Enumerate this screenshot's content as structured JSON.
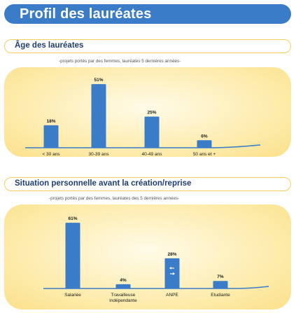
{
  "page": {
    "title": "Profil des lauréates"
  },
  "charts": {
    "age": {
      "section_title": "Âge des lauréates",
      "subtitle": "-projets portés par des femmes, lauréates 5 dernières années-"
    },
    "situation": {
      "section_title": "Situation personnelle avant la création/reprise",
      "subtitle": "-projets portés par des femmes, lauréates des 5 dernières années-"
    }
  },
  "colors": {
    "accent": "#3b7cc8",
    "panel": "#fdeaa6",
    "border": "#f5cf5e"
  },
  "chart_data": [
    {
      "type": "bar",
      "title": "Âge des lauréates",
      "categories": [
        "< 30 ans",
        "30-39 ans",
        "40-49 ans",
        "50 ans et +"
      ],
      "values": [
        18,
        51,
        25,
        6
      ],
      "value_labels": [
        "18%",
        "51%",
        "25%",
        "6%"
      ],
      "ylim": [
        0,
        55
      ],
      "grid": false
    },
    {
      "type": "bar",
      "title": "Situation personnelle avant la création/reprise",
      "categories": [
        "Salariée",
        "Travailleuse\nindépendante",
        "ANPE",
        "Etudiante"
      ],
      "values": [
        61,
        4,
        28,
        7
      ],
      "value_labels": [
        "61%",
        "4%",
        "28%",
        "7%"
      ],
      "ylim": [
        0,
        65
      ],
      "grid": false
    }
  ]
}
